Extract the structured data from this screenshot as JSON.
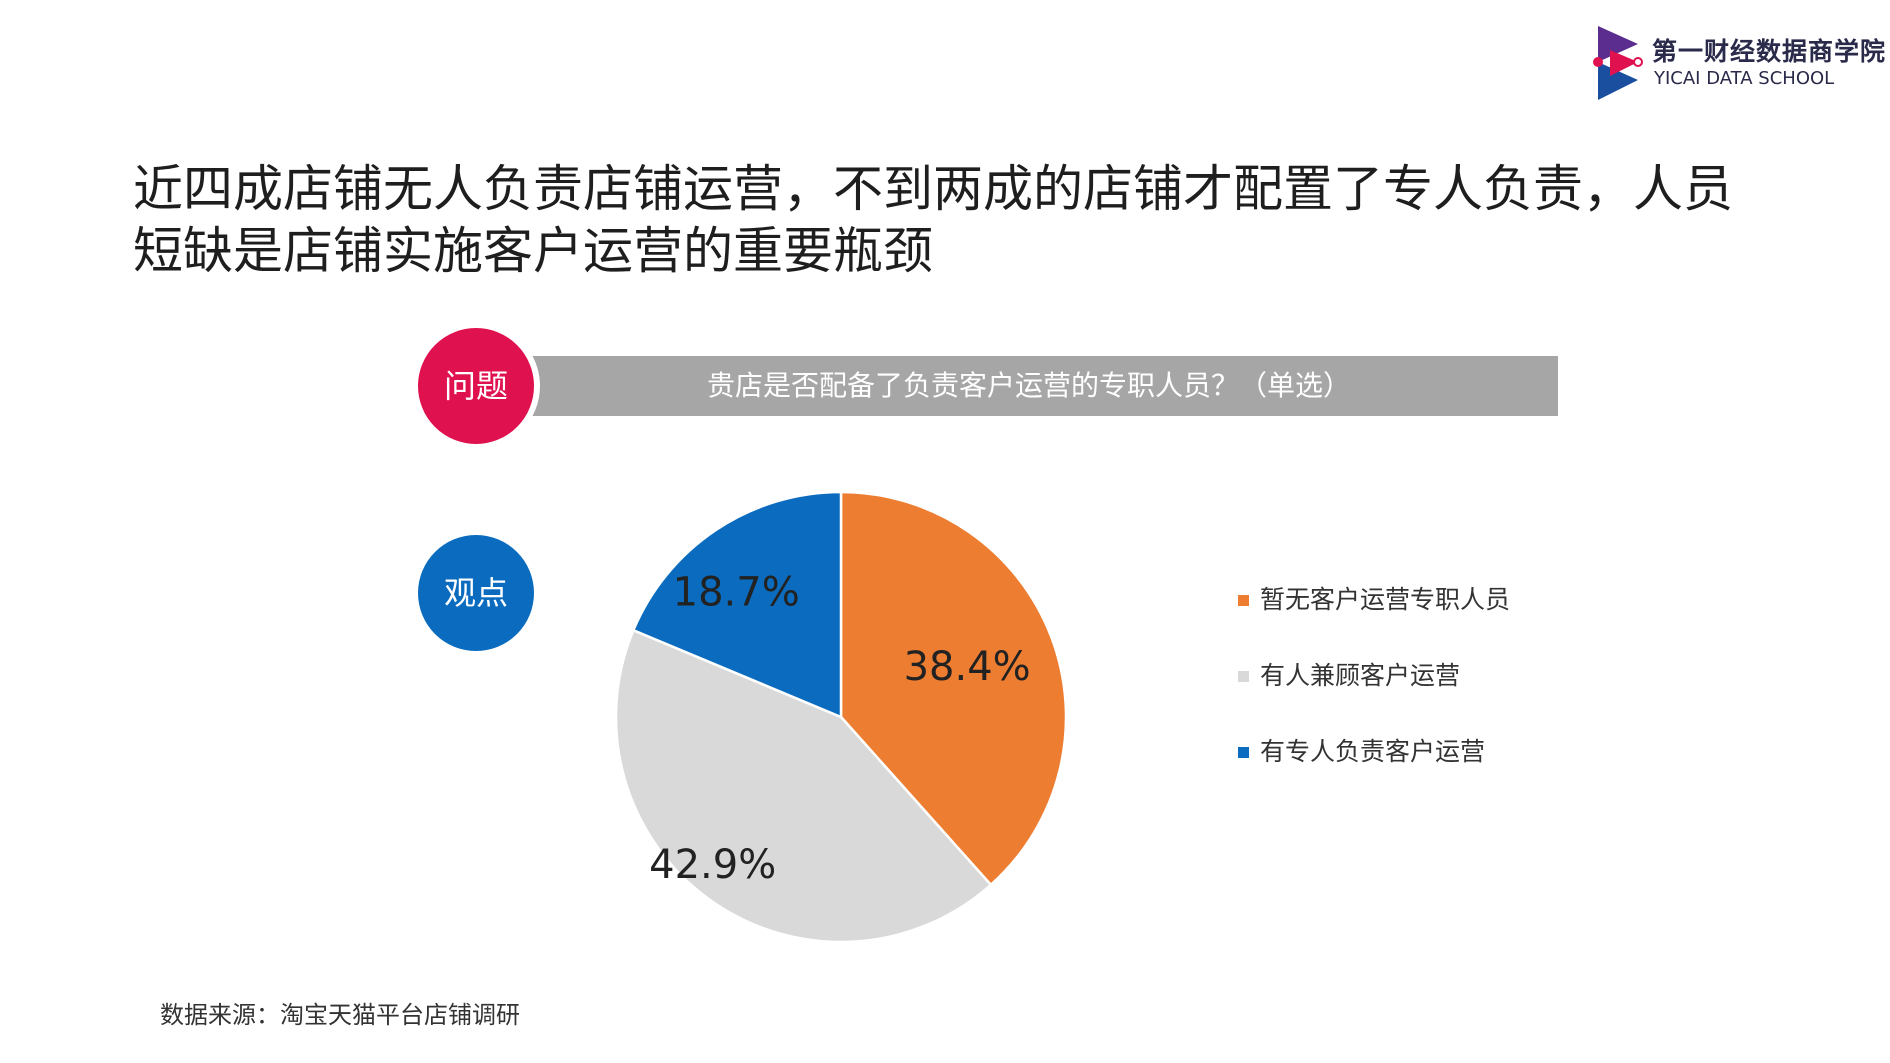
{
  "logo": {
    "cn": "第一财经数据商学院",
    "en": "YICAI DATA SCHOOL",
    "colors": {
      "purple": "#5b2d8e",
      "red": "#e0114f",
      "blue": "#1a4fa0"
    }
  },
  "headline": {
    "line1": "近四成店铺无人负责店铺运营，不到两成的店铺才配置了专人负责，人员",
    "line2": "短缺是店铺实施客户运营的重要瓶颈"
  },
  "question": {
    "badge": "问题",
    "text": "贵店是否配备了负责客户运营的专职人员？（单选）",
    "badge_color": "#e0114f",
    "bar_color": "#a6a6a6"
  },
  "viewpoint": {
    "badge": "观点",
    "badge_color": "#0b6cbf"
  },
  "chart_data": {
    "type": "pie",
    "title": "贵店是否配备了负责客户运营的专职人员？（单选）",
    "categories": [
      "暂无客户运营专职人员",
      "有人兼顾客户运营",
      "有专人负责客户运营"
    ],
    "values": [
      38.4,
      42.9,
      18.7
    ],
    "labels": [
      "38.4%",
      "42.9%",
      "18.7%"
    ],
    "colors": [
      "#ed7d31",
      "#d9d9d9",
      "#0b6cbf"
    ],
    "start_angle_deg": 0,
    "direction": "clockwise",
    "legend_position": "right"
  },
  "legend": {
    "items": [
      {
        "label": "暂无客户运营专职人员",
        "color": "#ed7d31"
      },
      {
        "label": "有人兼顾客户运营",
        "color": "#d9d9d9"
      },
      {
        "label": "有专人负责客户运营",
        "color": "#0b6cbf"
      }
    ]
  },
  "source": "数据来源：淘宝天猫平台店铺调研"
}
